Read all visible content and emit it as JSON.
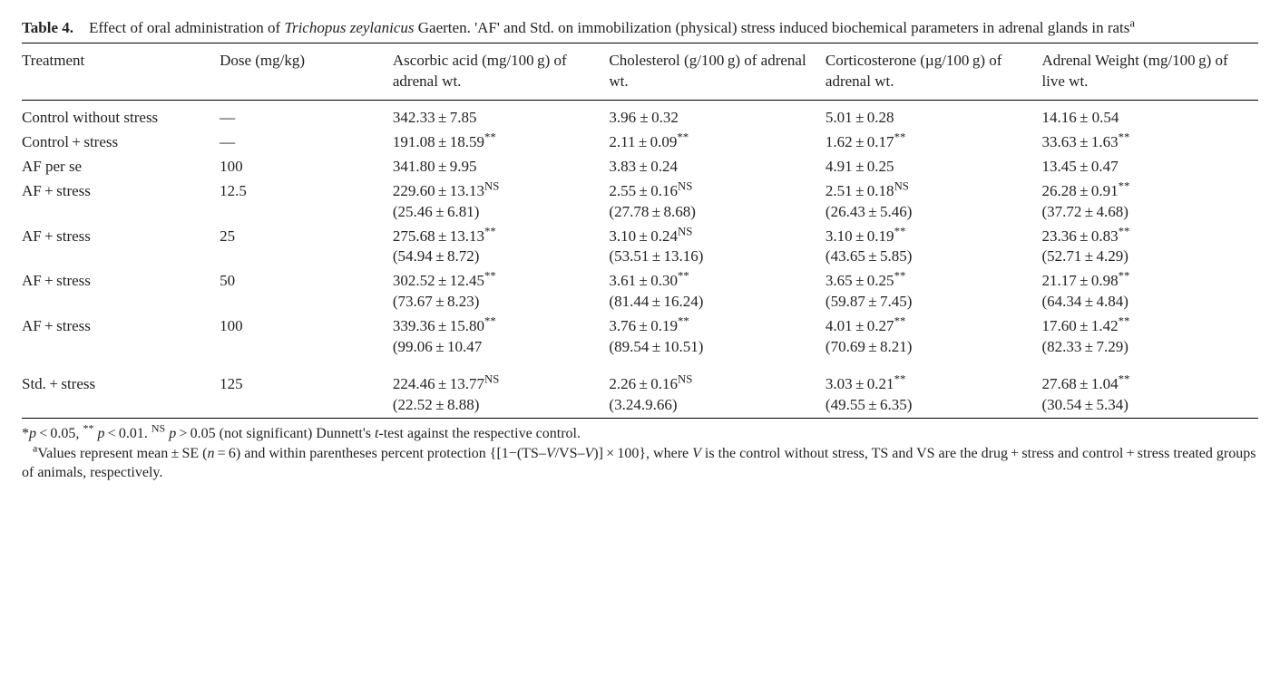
{
  "caption": {
    "label": "Table 4.",
    "pre_italic": "Effect of oral administration of ",
    "italic": "Trichopus zeylanicus",
    "post_italic": " Gaerten. 'AF' and Std. on immobilization (physical) stress induced biochemical parameters in adrenal glands in rats",
    "sup": "a"
  },
  "headers": {
    "treatment": "Treatment",
    "dose": "Dose (mg/kg)",
    "ascorbic": "Ascorbic acid (mg/100 g) of adrenal wt.",
    "cholesterol": "Cholesterol (g/100 g) of adrenal wt.",
    "corticosterone": "Corticosterone (µg/100 g) of adrenal wt.",
    "adrenal_wt": "Adrenal Weight (mg/100 g) of live wt."
  },
  "rows": [
    {
      "treatment": "Control without stress",
      "dose": "—",
      "c1": {
        "v": "342.33 ± 7.85"
      },
      "c2": {
        "v": "3.96 ± 0.32"
      },
      "c3": {
        "v": "5.01 ± 0.28"
      },
      "c4": {
        "v": "14.16 ± 0.54"
      }
    },
    {
      "treatment": "Control + stress",
      "dose": "—",
      "c1": {
        "v": "191.08 ± 18.59",
        "sup": "**"
      },
      "c2": {
        "v": "2.11 ± 0.09",
        "sup": "**"
      },
      "c3": {
        "v": "1.62 ± 0.17",
        "sup": "**"
      },
      "c4": {
        "v": "33.63 ± 1.63",
        "sup": "**"
      }
    },
    {
      "treatment": "AF per se",
      "dose": "100",
      "c1": {
        "v": "341.80 ± 9.95"
      },
      "c2": {
        "v": "3.83 ± 0.24"
      },
      "c3": {
        "v": "4.91 ± 0.25"
      },
      "c4": {
        "v": "13.45 ± 0.47"
      }
    },
    {
      "treatment": "AF + stress",
      "dose": "12.5",
      "c1": {
        "v": "229.60 ± 13.13",
        "sup": "NS",
        "p": "(25.46 ± 6.81)"
      },
      "c2": {
        "v": "2.55 ± 0.16",
        "sup": "NS",
        "p": "(27.78 ± 8.68)"
      },
      "c3": {
        "v": "2.51 ± 0.18",
        "sup": "NS",
        "p": "(26.43 ± 5.46)"
      },
      "c4": {
        "v": "26.28 ± 0.91",
        "sup": "**",
        "p": "(37.72 ± 4.68)"
      }
    },
    {
      "treatment": "AF + stress",
      "dose": "25",
      "c1": {
        "v": "275.68 ± 13.13",
        "sup": "**",
        "p": "(54.94 ± 8.72)"
      },
      "c2": {
        "v": "3.10 ± 0.24",
        "sup": "NS",
        "p": "(53.51 ± 13.16)"
      },
      "c3": {
        "v": "3.10 ± 0.19",
        "sup": "**",
        "p": "(43.65 ± 5.85)"
      },
      "c4": {
        "v": "23.36 ± 0.83",
        "sup": "**",
        "p": "(52.71 ± 4.29)"
      }
    },
    {
      "treatment": "AF + stress",
      "dose": "50",
      "c1": {
        "v": "302.52 ± 12.45",
        "sup": "**",
        "p": "(73.67 ± 8.23)"
      },
      "c2": {
        "v": "3.61 ± 0.30",
        "sup": "**",
        "p": "(81.44 ± 16.24)"
      },
      "c3": {
        "v": "3.65 ± 0.25",
        "sup": "**",
        "p": "(59.87 ± 7.45)"
      },
      "c4": {
        "v": "21.17 ± 0.98",
        "sup": "**",
        "p": "(64.34 ± 4.84)"
      }
    },
    {
      "treatment": "AF + stress",
      "dose": "100",
      "c1": {
        "v": "339.36 ± 15.80",
        "sup": "**",
        "p": "(99.06 ± 10.47"
      },
      "c2": {
        "v": "3.76 ± 0.19",
        "sup": "**",
        "p": "(89.54 ± 10.51)"
      },
      "c3": {
        "v": "4.01 ± 0.27",
        "sup": "**",
        "p": "(70.69 ± 8.21)"
      },
      "c4": {
        "v": "17.60 ± 1.42",
        "sup": "**",
        "p": "(82.33 ± 7.29)"
      }
    },
    {
      "spacer_before": true,
      "treatment": "Std. + stress",
      "dose": "125",
      "c1": {
        "v": "224.46 ± 13.77",
        "sup": "NS",
        "p": "(22.52 ± 8.88)"
      },
      "c2": {
        "v": "2.26 ± 0.16",
        "sup": "NS",
        "p": "(3.24.9.66)"
      },
      "c3": {
        "v": "3.03 ± 0.21",
        "sup": "**",
        "p": "(49.55 ± 6.35)"
      },
      "c4": {
        "v": "27.68 ± 1.04",
        "sup": "**",
        "p": "(30.54 ± 5.34)"
      }
    }
  ],
  "footnotes": {
    "line1_parts": {
      "a": "*",
      "b": "p",
      "c": " < 0.05, ",
      "d": "**",
      "e": " p",
      "f": " < 0.01. ",
      "g": "NS",
      "h": " p",
      "i": " > 0.05 (not significant) Dunnett's ",
      "j": "t",
      "k": "-test against the respective control."
    },
    "line2_parts": {
      "sup": "a",
      "a": "Values represent mean ± SE (",
      "b": "n",
      "c": " = 6) and within parentheses percent protection {[1−(TS–",
      "d": "V",
      "e": "/VS–",
      "f": "V",
      "g": ")] × 100}, where ",
      "h": "V",
      "i": " is the control without stress, TS and VS are the drug + stress and control + stress treated groups of animals, respectively."
    }
  }
}
